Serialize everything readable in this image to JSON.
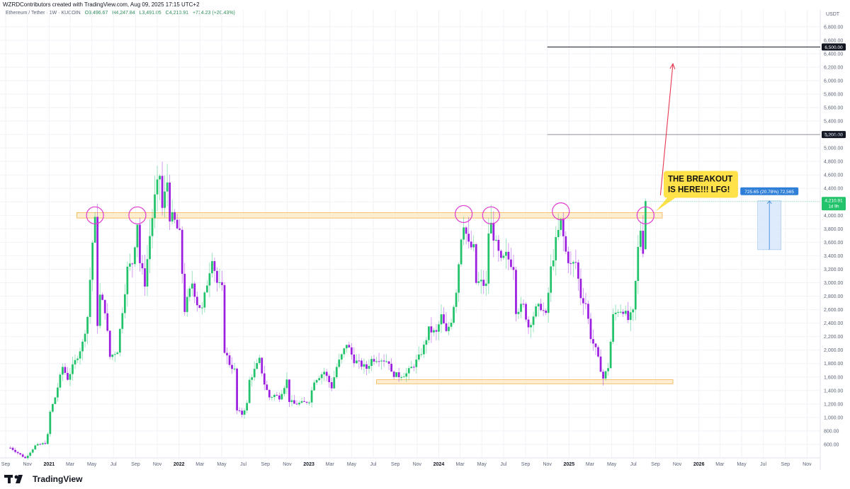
{
  "header": {
    "created_by": "WZRDContributors created with TradingView.com, Aug 09, 2025 17:15 UTC+2"
  },
  "legend": {
    "symbol": "Ethereum / Tether · 1W · KUCOIN",
    "open": "O3,496.67",
    "high": "H4,247.84",
    "low": "L3,491.05",
    "close": "C4,210.91",
    "change": "+714.23 (+20.43%)"
  },
  "footer": {
    "brand": "TradingView"
  },
  "colors": {
    "bull": "#22c36b",
    "bear": "#9c1fe0",
    "zone_fill": "#fde9c4",
    "zone_stroke": "#f6b24a",
    "circle": "#e03ad3",
    "arrow": "#e53950",
    "callout_bg": "#ffe14a",
    "measure": "#2f7fd8"
  },
  "chart_data": {
    "type": "candlestick",
    "currency": "USDT",
    "ylim": [
      400,
      7050
    ],
    "y_ticks": [
      600,
      800,
      1000,
      1200,
      1400,
      1600,
      1800,
      2000,
      2200,
      2400,
      2600,
      2800,
      3000,
      3200,
      3400,
      3600,
      3800,
      4000,
      4200,
      4400,
      4600,
      4800,
      5000,
      5200,
      5400,
      5600,
      5800,
      6000,
      6200,
      6400,
      6600,
      6800
    ],
    "y_tick_labels": [
      "600.00",
      "800.00",
      "1,000.00",
      "1,200.00",
      "1,400.00",
      "1,600.00",
      "1,800.00",
      "2,000.00",
      "2,200.00",
      "2,400.00",
      "2,600.00",
      "2,800.00",
      "3,000.00",
      "3,200.00",
      "3,400.00",
      "3,600.00",
      "3,800.00",
      "4,000.00",
      "4,200.00",
      "4,400.00",
      "4,600.00",
      "4,800.00",
      "5,000.00",
      "5,200.00",
      "5,400.00",
      "5,600.00",
      "5,800.00",
      "6,000.00",
      "6,200.00",
      "6,400.00",
      "6,600.00",
      "6,800.00"
    ],
    "x_range": [
      "2020-08-16",
      "2026-12-08"
    ],
    "x_ticks": [
      {
        "date": "2020-09-01",
        "label": "Sep"
      },
      {
        "date": "2020-11-01",
        "label": "Nov"
      },
      {
        "date": "2021-01-01",
        "label": "2021",
        "bold": true
      },
      {
        "date": "2021-03-01",
        "label": "Mar"
      },
      {
        "date": "2021-05-01",
        "label": "May"
      },
      {
        "date": "2021-07-01",
        "label": "Jul"
      },
      {
        "date": "2021-09-01",
        "label": "Sep"
      },
      {
        "date": "2021-11-01",
        "label": "Nov"
      },
      {
        "date": "2022-01-01",
        "label": "2022",
        "bold": true
      },
      {
        "date": "2022-03-01",
        "label": "Mar"
      },
      {
        "date": "2022-05-01",
        "label": "May"
      },
      {
        "date": "2022-07-01",
        "label": "Jul"
      },
      {
        "date": "2022-09-01",
        "label": "Sep"
      },
      {
        "date": "2022-11-01",
        "label": "Nov"
      },
      {
        "date": "2023-01-01",
        "label": "2023",
        "bold": true
      },
      {
        "date": "2023-03-01",
        "label": "Mar"
      },
      {
        "date": "2023-05-01",
        "label": "May"
      },
      {
        "date": "2023-07-01",
        "label": "Jul"
      },
      {
        "date": "2023-09-01",
        "label": "Sep"
      },
      {
        "date": "2023-11-01",
        "label": "Nov"
      },
      {
        "date": "2024-01-01",
        "label": "2024",
        "bold": true
      },
      {
        "date": "2024-03-01",
        "label": "Mar"
      },
      {
        "date": "2024-05-01",
        "label": "May"
      },
      {
        "date": "2024-07-01",
        "label": "Jul"
      },
      {
        "date": "2024-09-01",
        "label": "Sep"
      },
      {
        "date": "2024-11-01",
        "label": "Nov"
      },
      {
        "date": "2025-01-01",
        "label": "2025",
        "bold": true
      },
      {
        "date": "2025-03-01",
        "label": "Mar"
      },
      {
        "date": "2025-05-01",
        "label": "May"
      },
      {
        "date": "2025-07-01",
        "label": "Jul"
      },
      {
        "date": "2025-09-01",
        "label": "Sep"
      },
      {
        "date": "2025-11-01",
        "label": "Nov"
      },
      {
        "date": "2026-01-01",
        "label": "2026",
        "bold": true
      },
      {
        "date": "2026-03-01",
        "label": "Mar"
      },
      {
        "date": "2026-05-01",
        "label": "May"
      },
      {
        "date": "2026-07-01",
        "label": "Jul"
      },
      {
        "date": "2026-09-01",
        "label": "Sep"
      },
      {
        "date": "2026-11-01",
        "label": "Nov"
      }
    ],
    "close_path": [
      [
        "2020-09-14",
        550
      ],
      [
        "2020-10-26",
        395
      ],
      [
        "2020-11-23",
        580
      ],
      [
        "2020-12-21",
        620
      ],
      [
        "2020-12-28",
        740
      ],
      [
        "2021-01-04",
        1080
      ],
      [
        "2021-01-18",
        1300
      ],
      [
        "2021-02-08",
        1750
      ],
      [
        "2021-02-22",
        1580
      ],
      [
        "2021-03-15",
        1830
      ],
      [
        "2021-04-05",
        2100
      ],
      [
        "2021-04-19",
        2500
      ],
      [
        "2021-05-03",
        3600
      ],
      [
        "2021-05-10",
        3900
      ],
      [
        "2021-05-17",
        2400
      ],
      [
        "2021-05-24",
        2800
      ],
      [
        "2021-06-07",
        2600
      ],
      [
        "2021-06-21",
        1900
      ],
      [
        "2021-07-12",
        2000
      ],
      [
        "2021-07-26",
        2600
      ],
      [
        "2021-08-09",
        3200
      ],
      [
        "2021-08-23",
        3300
      ],
      [
        "2021-09-06",
        3900
      ],
      [
        "2021-09-13",
        3300
      ],
      [
        "2021-09-27",
        3000
      ],
      [
        "2021-10-11",
        3700
      ],
      [
        "2021-10-25",
        4250
      ],
      [
        "2021-11-08",
        4600
      ],
      [
        "2021-11-15",
        4100
      ],
      [
        "2021-11-29",
        4500
      ],
      [
        "2021-12-06",
        4000
      ],
      [
        "2021-12-20",
        3900
      ],
      [
        "2022-01-03",
        3700
      ],
      [
        "2022-01-17",
        2600
      ],
      [
        "2022-02-07",
        3000
      ],
      [
        "2022-02-21",
        2700
      ],
      [
        "2022-03-07",
        2600
      ],
      [
        "2022-03-21",
        3000
      ],
      [
        "2022-04-04",
        3400
      ],
      [
        "2022-04-18",
        3000
      ],
      [
        "2022-05-02",
        2900
      ],
      [
        "2022-05-09",
        2000
      ],
      [
        "2022-05-23",
        1800
      ],
      [
        "2022-06-06",
        1700
      ],
      [
        "2022-06-13",
        1100
      ],
      [
        "2022-06-27",
        1050
      ],
      [
        "2022-07-11",
        1200
      ],
      [
        "2022-07-18",
        1550
      ],
      [
        "2022-08-01",
        1700
      ],
      [
        "2022-08-15",
        1850
      ],
      [
        "2022-08-29",
        1500
      ],
      [
        "2022-09-12",
        1300
      ],
      [
        "2022-09-26",
        1330
      ],
      [
        "2022-10-10",
        1300
      ],
      [
        "2022-10-31",
        1550
      ],
      [
        "2022-11-07",
        1250
      ],
      [
        "2022-11-21",
        1200
      ],
      [
        "2022-12-19",
        1220
      ],
      [
        "2023-01-02",
        1250
      ],
      [
        "2023-01-16",
        1550
      ],
      [
        "2023-02-13",
        1680
      ],
      [
        "2023-03-06",
        1450
      ],
      [
        "2023-03-20",
        1750
      ],
      [
        "2023-04-10",
        2000
      ],
      [
        "2023-04-17",
        2100
      ],
      [
        "2023-05-08",
        1850
      ],
      [
        "2023-06-12",
        1730
      ],
      [
        "2023-06-26",
        1860
      ],
      [
        "2023-07-17",
        1880
      ],
      [
        "2023-08-14",
        1830
      ],
      [
        "2023-08-21",
        1650
      ],
      [
        "2023-09-11",
        1620
      ],
      [
        "2023-10-02",
        1650
      ],
      [
        "2023-10-23",
        1780
      ],
      [
        "2023-11-06",
        1890
      ],
      [
        "2023-11-20",
        2050
      ],
      [
        "2023-12-04",
        2300
      ],
      [
        "2023-12-25",
        2250
      ],
      [
        "2024-01-08",
        2500
      ],
      [
        "2024-01-22",
        2250
      ],
      [
        "2024-02-05",
        2450
      ],
      [
        "2024-02-19",
        2900
      ],
      [
        "2024-03-04",
        3700
      ],
      [
        "2024-03-11",
        3900
      ],
      [
        "2024-03-25",
        3550
      ],
      [
        "2024-04-08",
        3500
      ],
      [
        "2024-04-15",
        3000
      ],
      [
        "2024-04-29",
        3000
      ],
      [
        "2024-05-13",
        2950
      ],
      [
        "2024-05-20",
        3750
      ],
      [
        "2024-05-27",
        3850
      ],
      [
        "2024-06-10",
        3550
      ],
      [
        "2024-06-24",
        3300
      ],
      [
        "2024-07-08",
        3400
      ],
      [
        "2024-07-29",
        3250
      ],
      [
        "2024-08-05",
        2600
      ],
      [
        "2024-08-26",
        2650
      ],
      [
        "2024-09-09",
        2350
      ],
      [
        "2024-09-30",
        2600
      ],
      [
        "2024-10-14",
        2650
      ],
      [
        "2024-10-28",
        2500
      ],
      [
        "2024-11-11",
        3200
      ],
      [
        "2024-11-25",
        3600
      ],
      [
        "2024-12-09",
        3900
      ],
      [
        "2024-12-23",
        3450
      ],
      [
        "2025-01-06",
        3250
      ],
      [
        "2025-01-20",
        3300
      ],
      [
        "2025-02-03",
        2800
      ],
      [
        "2025-02-17",
        2700
      ],
      [
        "2025-03-03",
        2200
      ],
      [
        "2025-03-17",
        2000
      ],
      [
        "2025-04-07",
        1580
      ],
      [
        "2025-04-21",
        1750
      ],
      [
        "2025-05-05",
        2500
      ],
      [
        "2025-05-19",
        2600
      ],
      [
        "2025-06-02",
        2600
      ],
      [
        "2025-06-16",
        2450
      ],
      [
        "2025-06-30",
        2550
      ],
      [
        "2025-07-07",
        3000
      ],
      [
        "2025-07-14",
        3500
      ],
      [
        "2025-07-21",
        3800
      ],
      [
        "2025-07-28",
        3500
      ],
      [
        "2025-08-04",
        4210.91
      ]
    ],
    "levels": [
      {
        "price": 6500,
        "label": "6,500.00",
        "from": "2024-11-01"
      },
      {
        "price": 5200,
        "label": "5,200.00",
        "from": "2024-11-01"
      }
    ],
    "zones": [
      {
        "from": "2021-03-20",
        "to": "2025-09-20",
        "low": 3960,
        "high": 4040
      },
      {
        "from": "2023-07-10",
        "to": "2025-10-20",
        "low": 1500,
        "high": 1560
      }
    ],
    "circles": [
      {
        "date": "2021-05-10",
        "price": 4000
      },
      {
        "date": "2021-09-06",
        "price": 4000
      },
      {
        "date": "2024-03-11",
        "price": 4020
      },
      {
        "date": "2024-05-27",
        "price": 4000
      },
      {
        "date": "2024-12-09",
        "price": 4060
      },
      {
        "date": "2025-08-04",
        "price": 4000
      }
    ],
    "arrow": {
      "from_date": "2025-09-15",
      "from_price": 4300,
      "to_date": "2025-10-20",
      "to_price": 6250
    },
    "callout": {
      "line1": "THE BREAKOUT",
      "line2": "IS HERE!!! LFG!"
    },
    "last_price": {
      "value": 4210.91,
      "label": "4,210.91",
      "countdown": "1d 9h"
    },
    "measure": {
      "from_date": "2026-06-15",
      "to_date": "2026-08-20",
      "low": 3490,
      "high": 4216,
      "label": "725.65 (20.78%) 72,565"
    }
  }
}
